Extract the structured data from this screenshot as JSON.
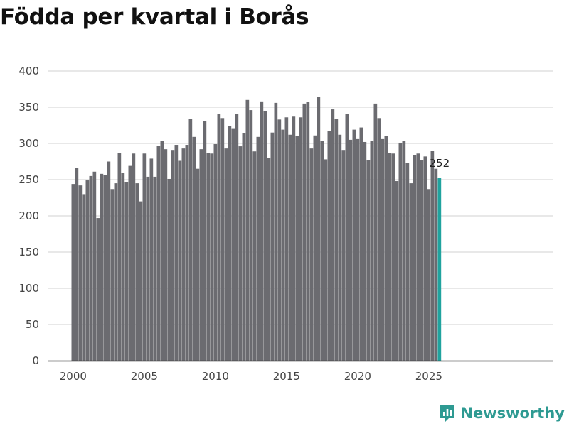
{
  "title": "Födda per kvartal i Borås",
  "brand": {
    "name": "Newsworthy",
    "icon": "newsworthy-logo-icon",
    "color": "#2e9a92"
  },
  "colors": {
    "bar": "#6b6b70",
    "highlight": "#20a39e",
    "grid": "#d9d9d9",
    "axis": "#333333"
  },
  "chart_data": {
    "type": "bar",
    "title": "Födda per kvartal i Borås",
    "xlabel": "",
    "ylabel": "",
    "ylim": [
      0,
      400
    ],
    "y_ticks": [
      0,
      50,
      100,
      150,
      200,
      250,
      300,
      350,
      400
    ],
    "x_ticks": [
      {
        "label": "2000",
        "year": 2000
      },
      {
        "label": "2005",
        "year": 2005
      },
      {
        "label": "2010",
        "year": 2010
      },
      {
        "label": "2015",
        "year": 2015
      },
      {
        "label": "2020",
        "year": 2020
      },
      {
        "label": "2025",
        "year": 2025
      }
    ],
    "start_year": 2000,
    "start_quarter": 1,
    "values": [
      244,
      266,
      242,
      230,
      249,
      255,
      261,
      197,
      258,
      256,
      275,
      237,
      245,
      287,
      259,
      247,
      269,
      286,
      245,
      220,
      286,
      254,
      279,
      254,
      297,
      303,
      292,
      251,
      291,
      298,
      276,
      293,
      298,
      334,
      309,
      265,
      292,
      331,
      287,
      286,
      299,
      341,
      335,
      293,
      324,
      321,
      341,
      296,
      314,
      360,
      346,
      289,
      309,
      358,
      345,
      280,
      315,
      356,
      333,
      319,
      336,
      312,
      337,
      310,
      336,
      355,
      357,
      293,
      311,
      364,
      303,
      278,
      317,
      347,
      334,
      312,
      291,
      341,
      305,
      319,
      306,
      322,
      302,
      277,
      303,
      355,
      335,
      306,
      310,
      287,
      286,
      248,
      301,
      303,
      273,
      245,
      284,
      286,
      277,
      282,
      237,
      290,
      265,
      252
    ],
    "highlight_last": true,
    "last_value_label": "252"
  }
}
